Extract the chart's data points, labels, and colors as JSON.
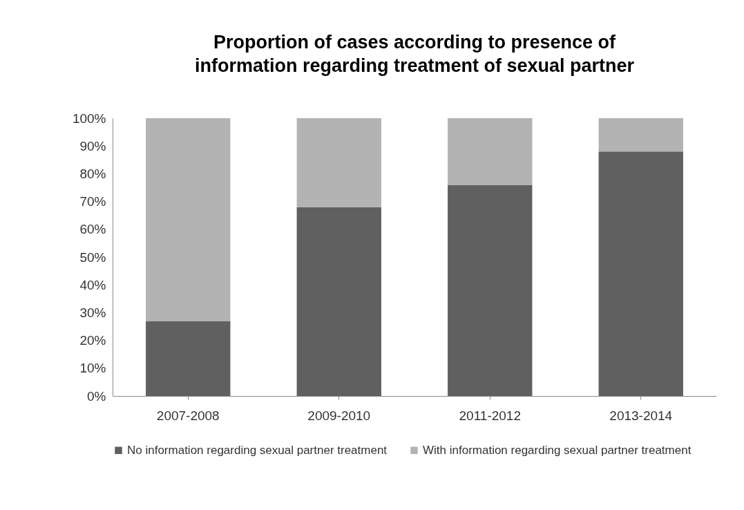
{
  "chart_data": {
    "type": "bar",
    "title": "Proportion of cases according to presence of information regarding treatment of sexual partner",
    "categories": [
      "2007-2008",
      "2009-2010",
      "2011-2012",
      "2013-2014"
    ],
    "stacked": true,
    "series": [
      {
        "name": "No information regarding sexual partner treatment",
        "color": "#606060",
        "values": [
          27,
          68,
          76,
          88
        ]
      },
      {
        "name": "With information regarding sexual partner treatment",
        "color": "#b3b3b3",
        "values": [
          73,
          32,
          24,
          12
        ]
      }
    ],
    "ylim": [
      0,
      100
    ],
    "yticks": [
      {
        "value": 0,
        "label": "0%"
      },
      {
        "value": 10,
        "label": "10%"
      },
      {
        "value": 20,
        "label": "20%"
      },
      {
        "value": 30,
        "label": "30%"
      },
      {
        "value": 40,
        "label": "40%"
      },
      {
        "value": 50,
        "label": "50%"
      },
      {
        "value": 60,
        "label": "60%"
      },
      {
        "value": 70,
        "label": "70%"
      },
      {
        "value": 80,
        "label": "80%"
      },
      {
        "value": 90,
        "label": "90%"
      },
      {
        "value": 100,
        "label": "100%"
      }
    ],
    "grid": false,
    "legend": "bottom"
  }
}
